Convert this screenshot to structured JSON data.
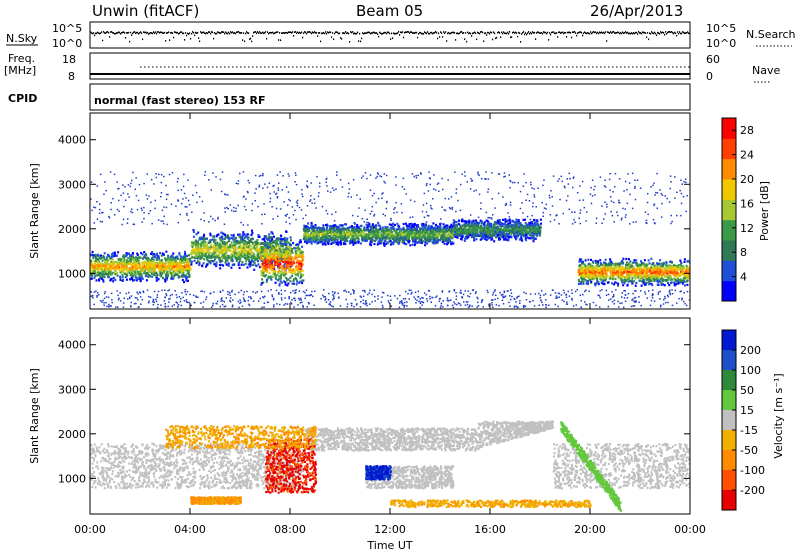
{
  "header": {
    "title": "Unwin (fitACF)",
    "beam": "Beam 05",
    "date": "26/Apr/2013"
  },
  "strips": {
    "nsky_label": "N.Sky",
    "nsky_top": "10^5",
    "nsky_bottom": "10^0",
    "nsearch_label": "N.Search",
    "nsearch_top": "10^5",
    "nsearch_bottom": "10^0",
    "freq_label": "Freq.",
    "freq_unit": "[MHz]",
    "freq_top": "18",
    "freq_bottom": "8",
    "nave_label": "Nave",
    "nave_top": "60",
    "nave_bottom": "0",
    "cpid_label": "CPID",
    "cpid_value": "normal (fast stereo) 153 RF"
  },
  "colors": {
    "power": [
      "#0000ff",
      "#1e4fd6",
      "#2f7a55",
      "#3a9a48",
      "#a8c832",
      "#f0c800",
      "#ff8c00",
      "#ff4000",
      "#ff0000"
    ],
    "velocity_pos": [
      "#0018d0",
      "#1c4fc8",
      "#2e8a3a",
      "#62c83c"
    ],
    "velocity_gs": "#c0c0c0",
    "velocity_neg": [
      "#f0b000",
      "#ff8c00",
      "#ff5000",
      "#e80000"
    ],
    "sparse": "#1e3cc8"
  },
  "chart_data": [
    {
      "type": "heatmap",
      "title": "",
      "xlabel": "Time UT",
      "ylabel": "Slant Range [km]",
      "x_ticks": [
        "00:00",
        "04:00",
        "08:00",
        "12:00",
        "16:00",
        "20:00",
        "00:00"
      ],
      "y_ticks": [
        1000,
        2000,
        3000,
        4000
      ],
      "ylim": [
        200,
        4600
      ],
      "xlim_hours": [
        0,
        24
      ],
      "colorbar": {
        "label": "Power [dB]",
        "ticks": [
          4,
          8,
          12,
          16,
          20,
          24,
          28
        ],
        "range": [
          0,
          30
        ]
      },
      "bands": [
        {
          "t": [
            0,
            4
          ],
          "range": [
            900,
            1450
          ],
          "level": 0.75
        },
        {
          "t": [
            4,
            8
          ],
          "range": [
            1200,
            1900
          ],
          "level": 0.6
        },
        {
          "t": [
            6.8,
            8.5
          ],
          "range": [
            800,
            1700
          ],
          "level": 0.95
        },
        {
          "t": [
            8.5,
            11
          ],
          "range": [
            1700,
            2100
          ],
          "level": 0.5
        },
        {
          "t": [
            11,
            14.5
          ],
          "range": [
            1700,
            2100
          ],
          "level": 0.45
        },
        {
          "t": [
            14.5,
            18
          ],
          "range": [
            1800,
            2200
          ],
          "level": 0.35
        },
        {
          "t": [
            19.5,
            24
          ],
          "range": [
            800,
            1300
          ],
          "level": 0.85
        }
      ]
    },
    {
      "type": "heatmap",
      "title": "",
      "xlabel": "Time UT",
      "ylabel": "Slant Range [km]",
      "x_ticks": [
        "00:00",
        "04:00",
        "08:00",
        "12:00",
        "16:00",
        "20:00",
        "00:00"
      ],
      "y_ticks": [
        1000,
        2000,
        3000,
        4000
      ],
      "ylim": [
        200,
        4600
      ],
      "xlim_hours": [
        0,
        24
      ],
      "colorbar": {
        "label": "Velocity [m s⁻¹]",
        "ticks": [
          "200",
          "100",
          "50",
          "15",
          "-15",
          "-50",
          "-100",
          "-200"
        ]
      },
      "features": [
        {
          "name": "ground scatter",
          "t": [
            0,
            24
          ],
          "range": [
            800,
            1800
          ]
        },
        {
          "name": "strong negative flow",
          "t": [
            7,
            9
          ],
          "range": [
            700,
            1900
          ],
          "velocity": -200
        },
        {
          "name": "positive flow",
          "t": [
            11,
            12
          ],
          "range": [
            1000,
            1300
          ],
          "velocity": 200
        },
        {
          "name": "near-range negative",
          "t": [
            4,
            6
          ],
          "range": [
            450,
            600
          ],
          "velocity": -50
        }
      ]
    }
  ]
}
